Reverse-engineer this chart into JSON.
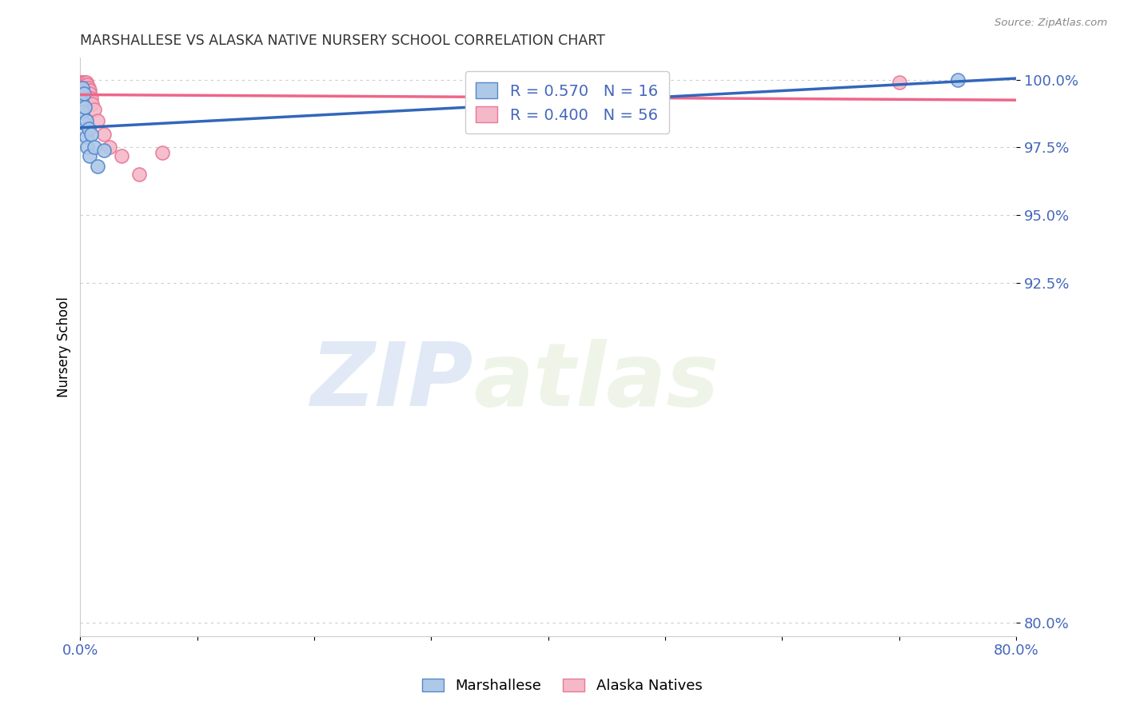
{
  "title": "MARSHALLESE VS ALASKA NATIVE NURSERY SCHOOL CORRELATION CHART",
  "source": "Source: ZipAtlas.com",
  "ylabel": "Nursery School",
  "xlim": [
    0.0,
    0.8
  ],
  "ylim": [
    0.795,
    1.008
  ],
  "yticks": [
    0.8,
    0.925,
    0.95,
    0.975,
    1.0
  ],
  "ytick_labels": [
    "80.0%",
    "92.5%",
    "95.0%",
    "97.5%",
    "100.0%"
  ],
  "xticks": [
    0.0,
    0.1,
    0.2,
    0.3,
    0.4,
    0.5,
    0.6,
    0.7,
    0.8
  ],
  "xtick_labels": [
    "0.0%",
    "",
    "",
    "",
    "",
    "",
    "",
    "",
    "80.0%"
  ],
  "marshallese_color": "#aec8e8",
  "alaska_color": "#f4b8c8",
  "marshallese_edge_color": "#5588cc",
  "alaska_edge_color": "#e87898",
  "marshallese_line_color": "#3366bb",
  "alaska_line_color": "#ee6688",
  "R_marshallese": 0.57,
  "N_marshallese": 16,
  "R_alaska": 0.4,
  "N_alaska": 56,
  "watermark_zip": "ZIP",
  "watermark_atlas": "atlas",
  "marshallese_x": [
    0.001,
    0.002,
    0.002,
    0.003,
    0.003,
    0.004,
    0.005,
    0.005,
    0.006,
    0.007,
    0.008,
    0.009,
    0.012,
    0.015,
    0.02,
    0.75
  ],
  "marshallese_y": [
    0.992,
    0.997,
    0.988,
    0.995,
    0.984,
    0.99,
    0.985,
    0.979,
    0.975,
    0.982,
    0.972,
    0.98,
    0.975,
    0.968,
    0.974,
    1.0
  ],
  "alaska_x": [
    0.001,
    0.001,
    0.001,
    0.001,
    0.001,
    0.002,
    0.002,
    0.002,
    0.002,
    0.002,
    0.002,
    0.002,
    0.002,
    0.003,
    0.003,
    0.003,
    0.003,
    0.003,
    0.003,
    0.003,
    0.003,
    0.004,
    0.004,
    0.004,
    0.004,
    0.004,
    0.004,
    0.005,
    0.005,
    0.005,
    0.005,
    0.005,
    0.006,
    0.006,
    0.006,
    0.006,
    0.006,
    0.007,
    0.007,
    0.007,
    0.007,
    0.007,
    0.007,
    0.008,
    0.008,
    0.008,
    0.009,
    0.01,
    0.012,
    0.015,
    0.02,
    0.025,
    0.035,
    0.05,
    0.07,
    0.7
  ],
  "alaska_y": [
    0.999,
    0.999,
    0.999,
    0.998,
    0.998,
    0.999,
    0.999,
    0.999,
    0.999,
    0.998,
    0.998,
    0.997,
    0.997,
    0.999,
    0.999,
    0.999,
    0.998,
    0.998,
    0.997,
    0.997,
    0.996,
    0.999,
    0.999,
    0.998,
    0.997,
    0.996,
    0.996,
    0.999,
    0.998,
    0.997,
    0.996,
    0.996,
    0.998,
    0.997,
    0.996,
    0.995,
    0.994,
    0.997,
    0.996,
    0.995,
    0.994,
    0.993,
    0.992,
    0.996,
    0.995,
    0.993,
    0.993,
    0.991,
    0.989,
    0.985,
    0.98,
    0.975,
    0.972,
    0.965,
    0.973,
    0.999
  ],
  "background_color": "#ffffff",
  "grid_color": "#cccccc",
  "title_color": "#333333",
  "axis_label_color": "#4466bb",
  "figsize": [
    14.06,
    8.92
  ],
  "dpi": 100
}
